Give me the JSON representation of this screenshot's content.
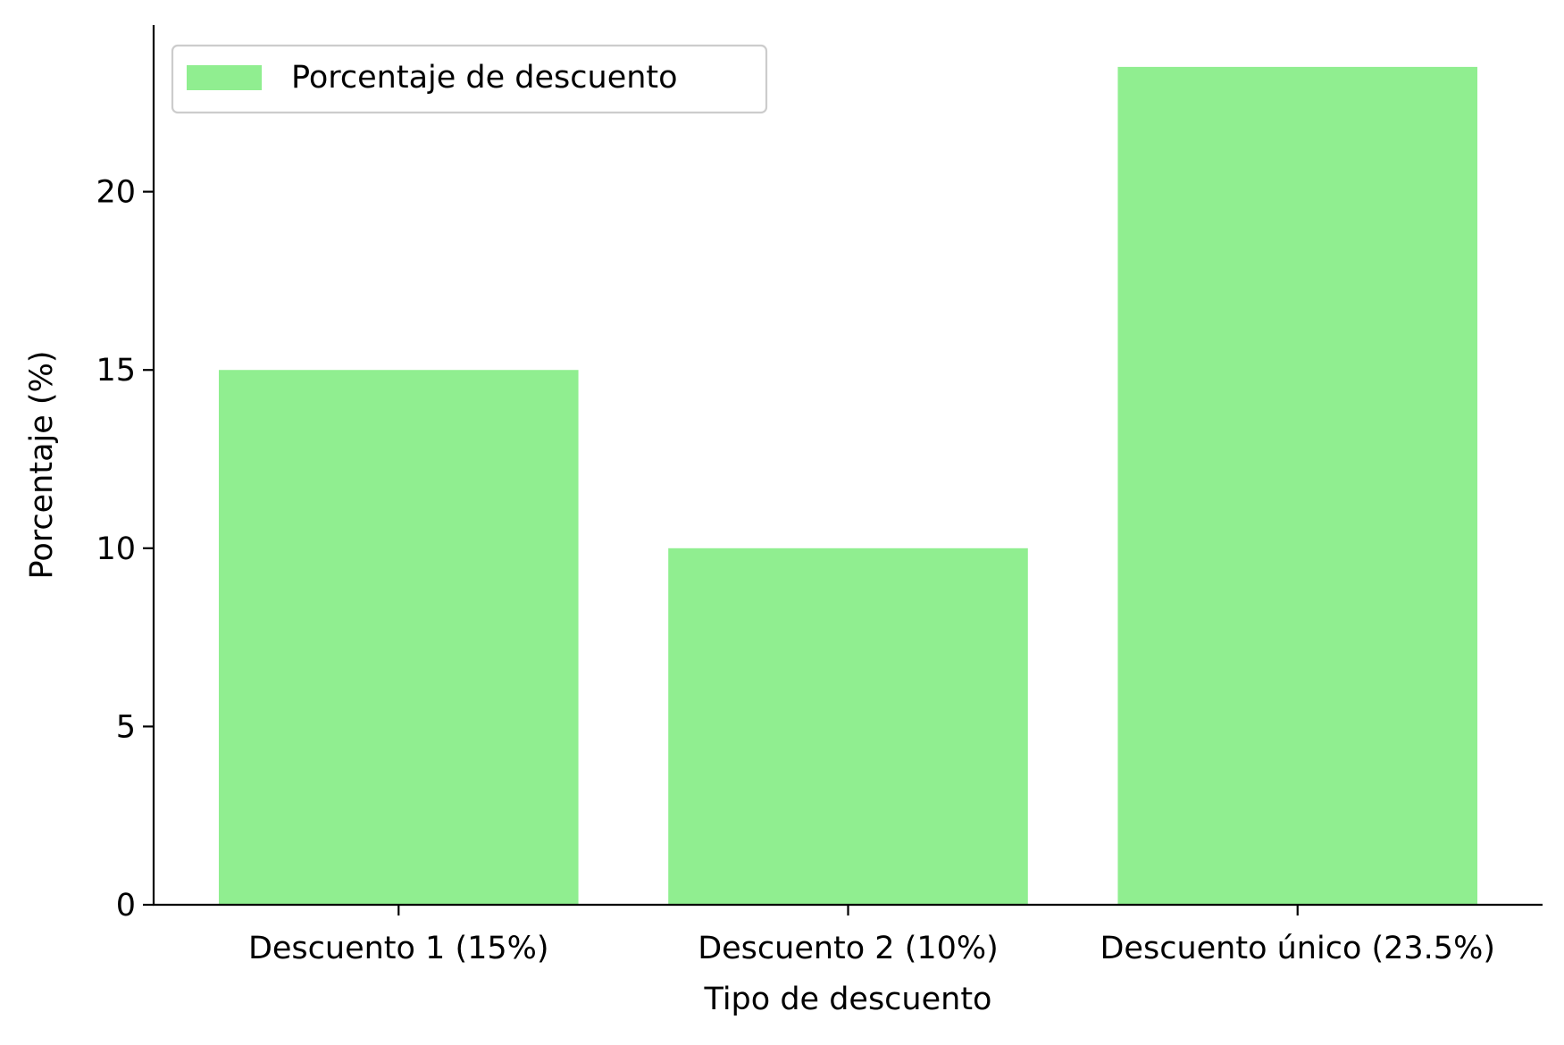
{
  "chart_data": {
    "type": "bar",
    "title": "",
    "xlabel": "Tipo de descuento",
    "ylabel": "Porcentaje (%)",
    "categories": [
      "Descuento 1 (15%)",
      "Descuento 2 (10%)",
      "Descuento único (23.5%)"
    ],
    "series": [
      {
        "name": "Porcentaje de descuento",
        "values": [
          15,
          10,
          23.5
        ],
        "color": "#90EE90"
      }
    ],
    "ylim": [
      0,
      24.675
    ],
    "yticks": [
      0,
      5,
      10,
      15,
      20
    ],
    "grid": false,
    "legend_position": "top-left"
  }
}
